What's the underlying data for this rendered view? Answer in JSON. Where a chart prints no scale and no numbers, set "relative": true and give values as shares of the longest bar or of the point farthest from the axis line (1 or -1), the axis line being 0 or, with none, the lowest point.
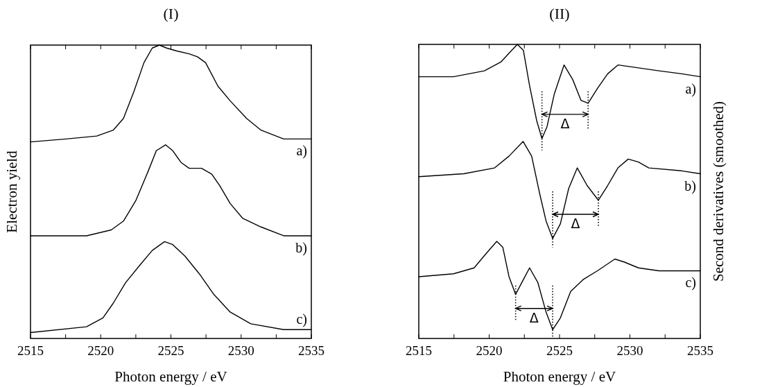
{
  "chart_data": [
    {
      "type": "line",
      "title": "(I)",
      "xlabel": "Photon energy / eV",
      "ylabel": "Electron yield",
      "relative": true,
      "tick_labels": "x",
      "xlim": [
        2515,
        2535
      ],
      "xticks": [
        2515,
        {
          "value": 2517.5,
          "label": null
        },
        2520,
        {
          "value": 2522.5,
          "label": null
        },
        2525,
        {
          "value": 2527.5,
          "label": null
        },
        2530,
        {
          "value": 2532.5,
          "label": null
        },
        2535
      ],
      "series": [
        {
          "name": "a)",
          "color": "#000000",
          "x": [
            2515,
            2517.53,
            2519.72,
            2520.89,
            2521.62,
            2522.35,
            2523.08,
            2523.67,
            2524.18,
            2524.69,
            2525.42,
            2526.3,
            2526.89,
            2527.47,
            2528.35,
            2529.22,
            2530.39,
            2531.42,
            2533.03,
            2535
          ],
          "values": [
            0.67,
            0.68,
            0.69,
            0.71,
            0.75,
            0.84,
            0.94,
            0.99,
            1.0,
            0.99,
            0.98,
            0.97,
            0.96,
            0.94,
            0.86,
            0.81,
            0.75,
            0.71,
            0.68,
            0.68
          ]
        },
        {
          "name": "b)",
          "color": "#000000",
          "x": [
            2515,
            2518.99,
            2520.75,
            2521.62,
            2522.5,
            2523.38,
            2523.96,
            2524.62,
            2525.13,
            2525.72,
            2526.3,
            2527.18,
            2527.91,
            2528.49,
            2529.22,
            2530.1,
            2531.42,
            2533.03,
            2535
          ],
          "values": [
            0.35,
            0.35,
            0.37,
            0.4,
            0.47,
            0.57,
            0.64,
            0.66,
            0.64,
            0.6,
            0.58,
            0.58,
            0.56,
            0.52,
            0.46,
            0.41,
            0.38,
            0.35,
            0.35
          ]
        },
        {
          "name": "c)",
          "color": "#000000",
          "x": [
            2515,
            2518.99,
            2520.16,
            2520.89,
            2521.77,
            2522.79,
            2523.67,
            2524.55,
            2525.13,
            2526.01,
            2527.03,
            2528.06,
            2529.22,
            2530.69,
            2533.03,
            2535
          ],
          "values": [
            0.02,
            0.04,
            0.07,
            0.12,
            0.19,
            0.25,
            0.3,
            0.33,
            0.32,
            0.28,
            0.22,
            0.15,
            0.09,
            0.05,
            0.03,
            0.03
          ]
        }
      ]
    },
    {
      "type": "line",
      "title": "(II)",
      "xlabel": "Photon energy / eV",
      "y2label": "Second derivatives (smoothed)",
      "relative": true,
      "tick_labels": "x",
      "xlim": [
        2515,
        2535
      ],
      "xticks": [
        2515,
        {
          "value": 2517.5,
          "label": null
        },
        2520,
        {
          "value": 2522.5,
          "label": null
        },
        2525,
        {
          "value": 2527.5,
          "label": null
        },
        2530,
        {
          "value": 2532.5,
          "label": null
        },
        2535
      ],
      "series": [
        {
          "name": "a)",
          "color": "#000000",
          "x": [
            2515,
            2517.47,
            2519.66,
            2520.83,
            2521.41,
            2522.0,
            2522.43,
            2522.87,
            2523.38,
            2523.75,
            2524.11,
            2524.62,
            2525.32,
            2525.94,
            2526.52,
            2527.03,
            2527.69,
            2528.42,
            2529.15,
            2530.61,
            2532.07,
            2533.67,
            2535
          ],
          "values": [
            0.89,
            0.89,
            0.91,
            0.94,
            0.97,
            1.0,
            0.98,
            0.86,
            0.74,
            0.68,
            0.72,
            0.83,
            0.93,
            0.88,
            0.81,
            0.8,
            0.85,
            0.9,
            0.93,
            0.92,
            0.91,
            0.9,
            0.89
          ]
        },
        {
          "name": "b)",
          "color": "#000000",
          "x": [
            2515,
            2518.2,
            2520.39,
            2521.41,
            2522.41,
            2523.02,
            2523.6,
            2524.04,
            2524.51,
            2525.06,
            2525.65,
            2526.26,
            2526.96,
            2527.76,
            2528.42,
            2529.15,
            2529.88,
            2530.61,
            2531.34,
            2533.67,
            2535
          ],
          "values": [
            0.55,
            0.56,
            0.58,
            0.62,
            0.67,
            0.62,
            0.49,
            0.4,
            0.34,
            0.39,
            0.51,
            0.58,
            0.52,
            0.47,
            0.52,
            0.58,
            0.61,
            0.6,
            0.58,
            0.57,
            0.56
          ]
        },
        {
          "name": "c)",
          "color": "#000000",
          "x": [
            2515,
            2517.47,
            2518.93,
            2519.81,
            2520.54,
            2520.97,
            2521.41,
            2521.88,
            2522.43,
            2522.87,
            2523.46,
            2524.04,
            2524.51,
            2525.06,
            2525.79,
            2526.67,
            2527.69,
            2528.93,
            2529.59,
            2530.61,
            2532.07,
            2533.67,
            2535
          ],
          "values": [
            0.21,
            0.22,
            0.24,
            0.29,
            0.33,
            0.31,
            0.21,
            0.15,
            0.2,
            0.24,
            0.19,
            0.09,
            0.03,
            0.07,
            0.16,
            0.2,
            0.23,
            0.27,
            0.26,
            0.24,
            0.23,
            0.23,
            0.23
          ]
        },
        {
          "color": "#000000",
          "line_style": "dotted",
          "x": [
            2523.75,
            2523.75
          ],
          "values": [
            0.84,
            0.64
          ]
        },
        {
          "color": "#000000",
          "line_style": "dotted",
          "x": [
            2527.03,
            2527.03
          ],
          "values": [
            0.84,
            0.71
          ]
        },
        {
          "color": "#000000",
          "line_style": "dotted",
          "x": [
            2524.51,
            2524.51
          ],
          "values": [
            0.5,
            0.31
          ]
        },
        {
          "color": "#000000",
          "line_style": "dotted",
          "x": [
            2527.76,
            2527.76
          ],
          "values": [
            0.5,
            0.38
          ]
        },
        {
          "color": "#000000",
          "line_style": "dotted",
          "x": [
            2521.88,
            2521.88
          ],
          "values": [
            0.18,
            0.06
          ]
        },
        {
          "color": "#000000",
          "line_style": "dotted",
          "x": [
            2524.51,
            2524.51
          ],
          "values": [
            0.18,
            0.0
          ]
        }
      ],
      "annotations": [
        "Δ",
        "Δ",
        "Δ"
      ]
    }
  ]
}
